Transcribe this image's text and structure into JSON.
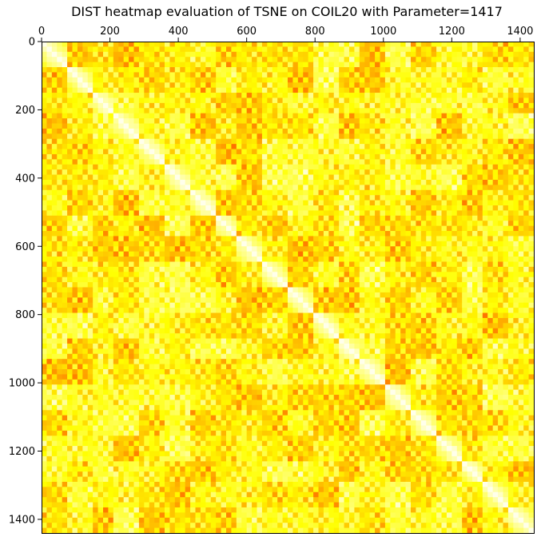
{
  "chart_data": {
    "type": "heatmap",
    "title": "DIST heatmap evaluation of TSNE on COIL20 with Parameter=1417",
    "xlabel": "",
    "ylabel": "",
    "xlim": [
      0,
      1440
    ],
    "ylim": [
      1440,
      0
    ],
    "x_axis_position": "top",
    "x_ticks": [
      0,
      200,
      400,
      600,
      800,
      1000,
      1200,
      1400
    ],
    "y_ticks": [
      0,
      200,
      400,
      600,
      800,
      1000,
      1200,
      1400
    ],
    "x_tick_labels": [
      "0",
      "200",
      "400",
      "600",
      "800",
      "1000",
      "1200",
      "1400"
    ],
    "y_tick_labels": [
      "0",
      "200",
      "400",
      "600",
      "800",
      "1000",
      "1200",
      "1400"
    ],
    "colormap": "hot",
    "grid": false,
    "legend": "none",
    "n_samples": 1440,
    "n_classes": 20,
    "class_size": 72,
    "block_boundaries": [
      0,
      72,
      144,
      216,
      288,
      360,
      432,
      504,
      576,
      648,
      720,
      792,
      864,
      936,
      1008,
      1080,
      1152,
      1224,
      1296,
      1368,
      1440
    ],
    "description_values": "distance normalized 0-1; diagonal blocks near 0 (light yellow), off-diagonal blocks mostly 0.3-0.9 (orange to red)"
  }
}
